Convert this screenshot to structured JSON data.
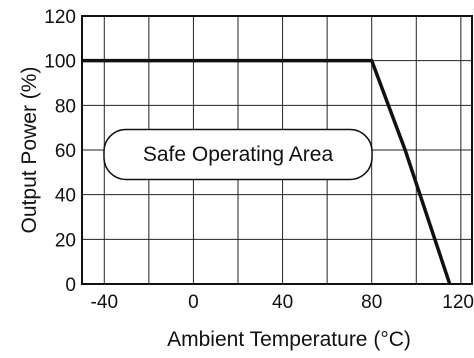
{
  "chart_data": {
    "type": "line",
    "title": "",
    "xlabel": "Ambient Temperature (°C)",
    "ylabel": "Output Power (%)",
    "xlim": [
      -50,
      125
    ],
    "ylim": [
      0,
      120
    ],
    "x_ticks": [
      -40,
      0,
      40,
      80,
      120
    ],
    "x_tick_labels": [
      "-40",
      "0",
      "40",
      "80",
      "120"
    ],
    "y_ticks": [
      0,
      20,
      40,
      60,
      80,
      100,
      120
    ],
    "y_tick_labels": [
      "0",
      "20",
      "40",
      "60",
      "80",
      "100",
      "120"
    ],
    "grid": true,
    "series": [
      {
        "x": [
          -50,
          80,
          95,
          115
        ],
        "y": [
          100,
          100,
          60,
          0
        ],
        "color": "#111111"
      }
    ],
    "annotations": [
      {
        "text": "Safe Operating Area",
        "x": 20,
        "y": 58,
        "shape": "rounded-box"
      }
    ]
  }
}
